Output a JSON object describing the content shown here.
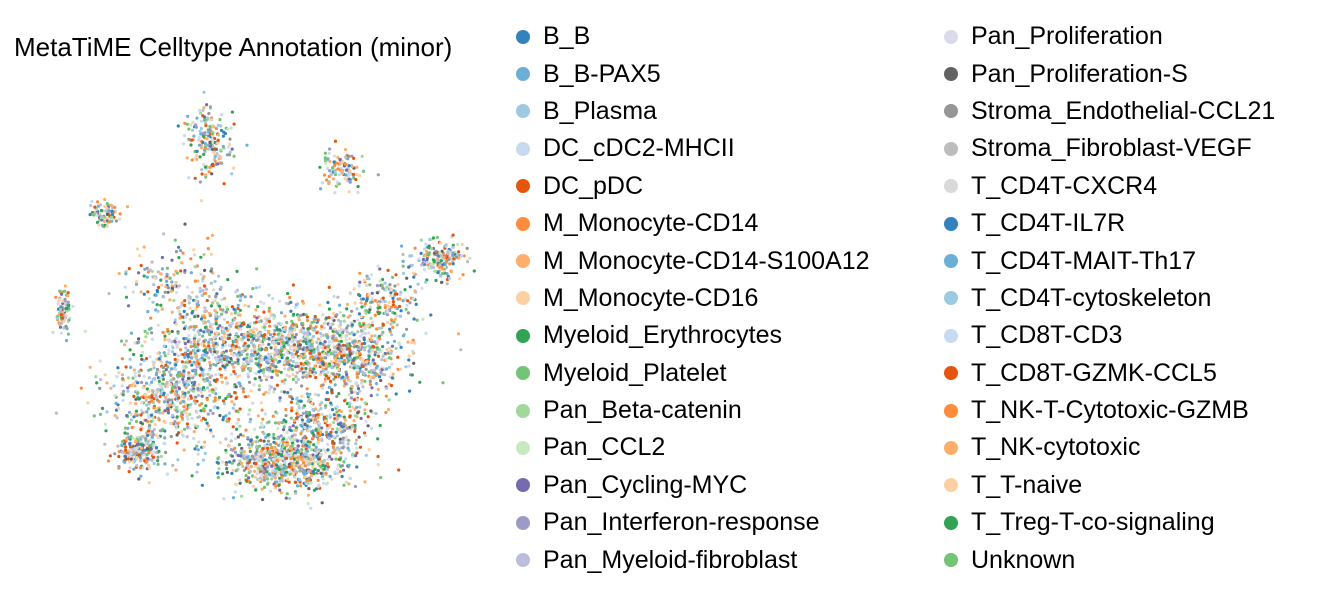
{
  "chart_data": {
    "type": "scatter",
    "title": "MetaTiME Celltype Annotation (minor)",
    "xlabel": "",
    "ylabel": "",
    "axes_visible": false,
    "grid": false,
    "legend_placement": "right, two columns",
    "series": [
      {
        "name": "B_B",
        "color": "#3182bd"
      },
      {
        "name": "B_B-PAX5",
        "color": "#6baed6"
      },
      {
        "name": "B_Plasma",
        "color": "#9ecae1"
      },
      {
        "name": "DC_cDC2-MHCII",
        "color": "#c6dbef"
      },
      {
        "name": "DC_pDC",
        "color": "#e6550d"
      },
      {
        "name": "M_Monocyte-CD14",
        "color": "#fd8d3c"
      },
      {
        "name": "M_Monocyte-CD14-S100A12",
        "color": "#fdae6b"
      },
      {
        "name": "M_Monocyte-CD16",
        "color": "#fdd0a2"
      },
      {
        "name": "Myeloid_Erythrocytes",
        "color": "#31a354"
      },
      {
        "name": "Myeloid_Platelet",
        "color": "#74c476"
      },
      {
        "name": "Pan_Beta-catenin",
        "color": "#a1d99b"
      },
      {
        "name": "Pan_CCL2",
        "color": "#c7e9c0"
      },
      {
        "name": "Pan_Cycling-MYC",
        "color": "#756bb1"
      },
      {
        "name": "Pan_Interferon-response",
        "color": "#9e9ac8"
      },
      {
        "name": "Pan_Myeloid-fibroblast",
        "color": "#bcbddc"
      },
      {
        "name": "Pan_Proliferation",
        "color": "#dadaeb"
      },
      {
        "name": "Pan_Proliferation-S",
        "color": "#636363"
      },
      {
        "name": "Stroma_Endothelial-CCL21",
        "color": "#969696"
      },
      {
        "name": "Stroma_Fibroblast-VEGF",
        "color": "#bdbdbd"
      },
      {
        "name": "T_CD4T-CXCR4",
        "color": "#d9d9d9"
      },
      {
        "name": "T_CD4T-IL7R",
        "color": "#3182bd"
      },
      {
        "name": "T_CD4T-MAIT-Th17",
        "color": "#6baed6"
      },
      {
        "name": "T_CD4T-cytoskeleton",
        "color": "#9ecae1"
      },
      {
        "name": "T_CD8T-CD3",
        "color": "#c6dbef"
      },
      {
        "name": "T_CD8T-GZMK-CCL5",
        "color": "#e6550d"
      },
      {
        "name": "T_NK-T-Cytotoxic-GZMB",
        "color": "#fd8d3c"
      },
      {
        "name": "T_NK-cytotoxic",
        "color": "#fdae6b"
      },
      {
        "name": "T_T-naive",
        "color": "#fdd0a2"
      },
      {
        "name": "T_Treg-T-co-signaling",
        "color": "#31a354"
      },
      {
        "name": "Unknown",
        "color": "#74c476"
      }
    ]
  }
}
